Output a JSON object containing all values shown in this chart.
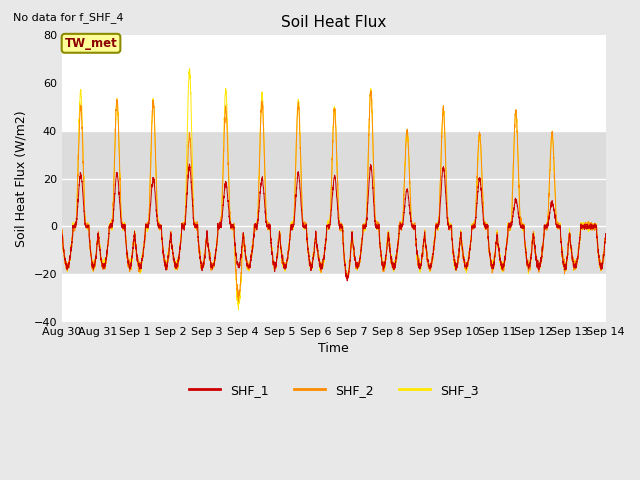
{
  "title": "Soil Heat Flux",
  "subtitle": "No data for f_SHF_4",
  "ylabel": "Soil Heat Flux (W/m2)",
  "xlabel": "Time",
  "ylim": [
    -40,
    80
  ],
  "yticks": [
    -40,
    -20,
    0,
    20,
    40,
    60,
    80
  ],
  "xtick_labels": [
    "Aug 30",
    "Aug 31",
    "Sep 1",
    "Sep 2",
    "Sep 3",
    "Sep 4",
    "Sep 5",
    "Sep 6",
    "Sep 7",
    "Sep 8",
    "Sep 9",
    "Sep 10",
    "Sep 11",
    "Sep 12",
    "Sep 13",
    "Sep 14"
  ],
  "shf1_color": "#CC0000",
  "shf2_color": "#FF8C00",
  "shf3_color": "#FFE800",
  "legend_label1": "SHF_1",
  "legend_label2": "SHF_2",
  "legend_label3": "SHF_3",
  "annotation_text": "TW_met",
  "plot_bg_color": "#FFFFFF",
  "fig_bg_color": "#E8E8E8",
  "shaded_low": -20,
  "shaded_high": 40,
  "shaded_color": "#DCDCDC",
  "grid_color": "#FFFFFF",
  "n_days": 15,
  "pts_per_day": 288,
  "day_peak_shf1": [
    22,
    22,
    20,
    25,
    18,
    20,
    22,
    21,
    25,
    15,
    25,
    20,
    11,
    10,
    0
  ],
  "day_peak_shf2": [
    50,
    53,
    52,
    38,
    49,
    52,
    51,
    49,
    57,
    40,
    49,
    39,
    48,
    39,
    0
  ],
  "day_peak_shf3": [
    57,
    53,
    52,
    66,
    57,
    55,
    52,
    50,
    57,
    40,
    49,
    38,
    48,
    39,
    0
  ],
  "night_depth": 14,
  "extra_deep_day": 4,
  "extra_deep_factor": 2.2
}
